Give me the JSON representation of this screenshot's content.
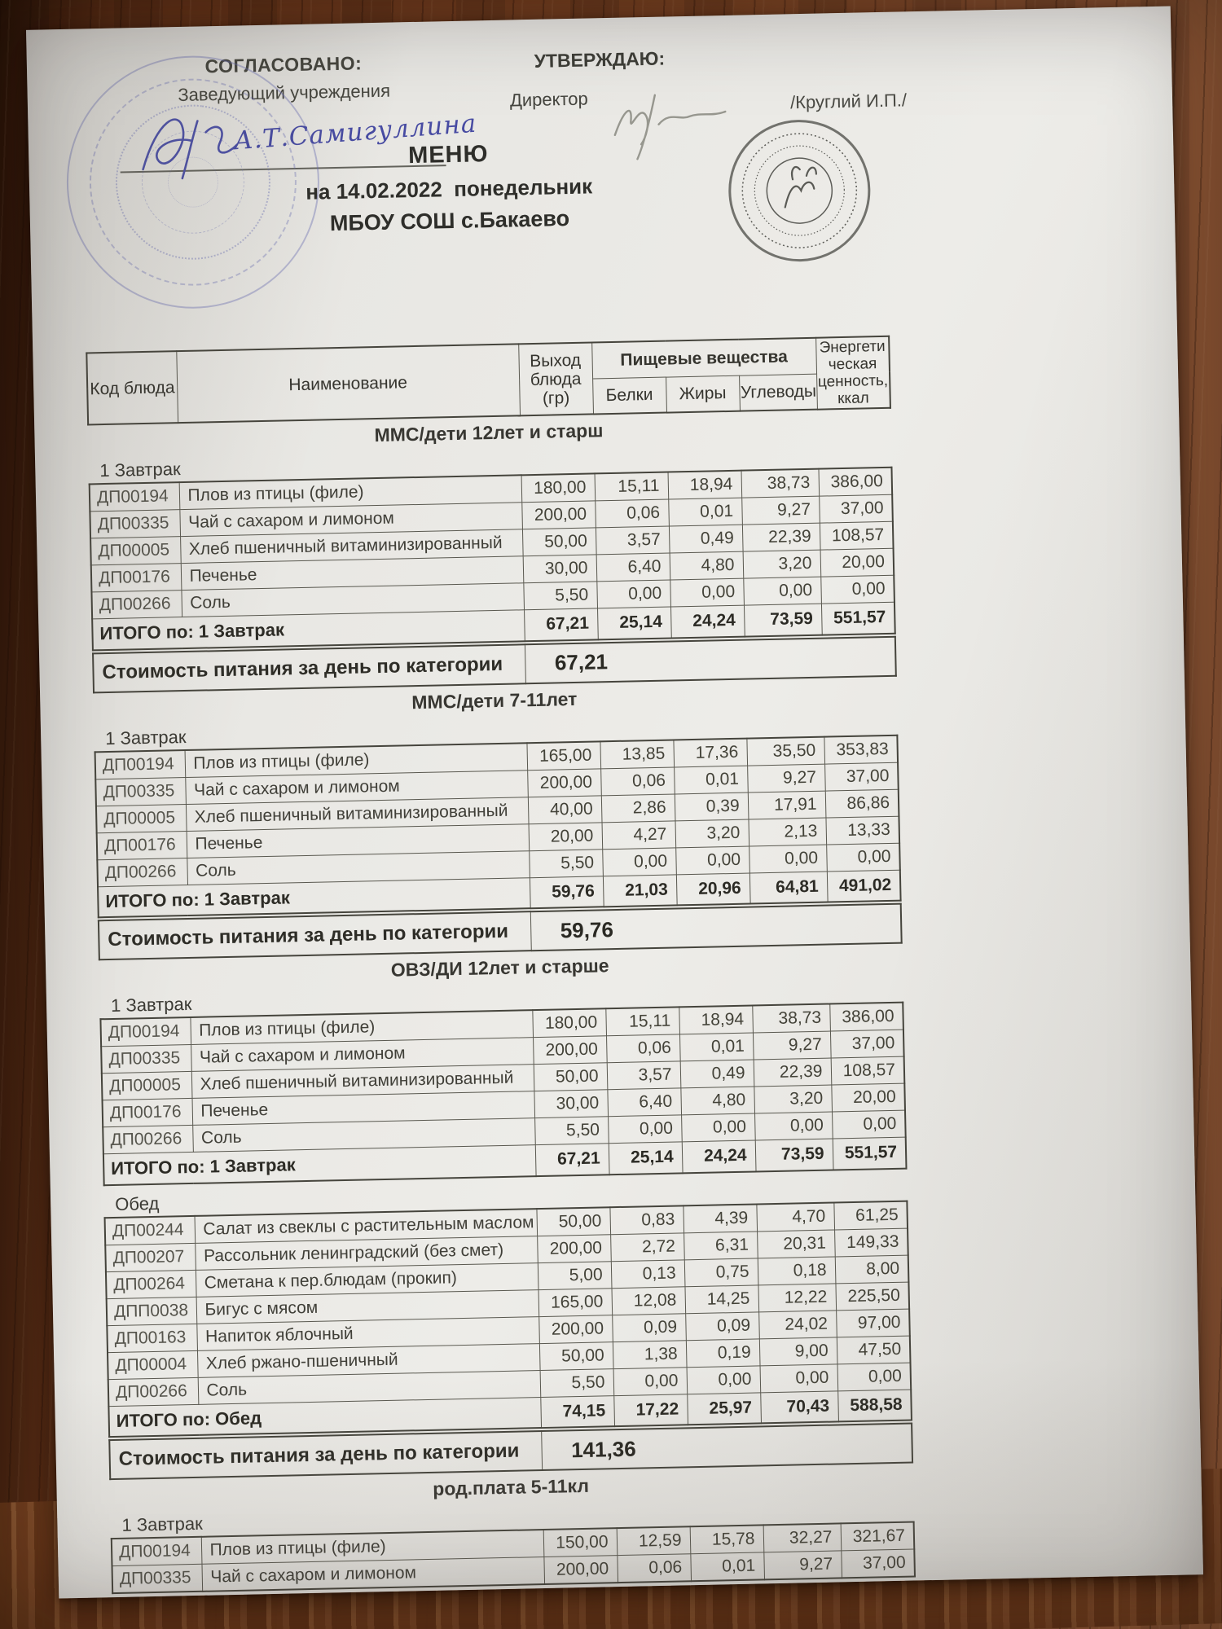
{
  "signoff": {
    "agreed_title": "СОГЛАСОВАНО:",
    "agreed_role": "Заведующий  учреждения",
    "agreed_signature": "А.Т.Самигуллина",
    "approve_title": "УТВЕРЖДАЮ:",
    "approve_role": "Директор",
    "approve_name": "/Круглий И.П./"
  },
  "title": {
    "menu": "МЕНЮ",
    "date_line": "на 14.02.2022  понедельник",
    "school": "МБОУ СОШ с.Бакаево"
  },
  "columns": {
    "code": "Код блюда",
    "name": "Наименование",
    "output": "Выход блюда (гр)",
    "nutrients": "Пищевые вещества",
    "protein": "Белки",
    "fat": "Жиры",
    "carbs": "Углеводы",
    "energy": "Энергети ческая ценность, ккал"
  },
  "stamps": {
    "left_stamp": "round-blue-ink-stamp",
    "right_stamp": "round-dark-seal"
  },
  "sections": [
    {
      "category": "ММС/дети 12лет и старш",
      "blocks": [
        {
          "meal": "1 Завтрак",
          "rows": [
            [
              "ДП00194",
              "Плов из птицы (филе)",
              "180,00",
              "15,11",
              "18,94",
              "38,73",
              "386,00"
            ],
            [
              "ДП00335",
              "Чай с сахаром и лимоном",
              "200,00",
              "0,06",
              "0,01",
              "9,27",
              "37,00"
            ],
            [
              "ДП00005",
              "Хлеб пшеничный витаминизированный",
              "50,00",
              "3,57",
              "0,49",
              "22,39",
              "108,57"
            ],
            [
              "ДП00176",
              "Печенье",
              "30,00",
              "6,40",
              "4,80",
              "3,20",
              "20,00"
            ],
            [
              "ДП00266",
              "Соль",
              "5,50",
              "0,00",
              "0,00",
              "0,00",
              "0,00"
            ]
          ],
          "total_label": "ИТОГО по: 1 Завтрак",
          "total": [
            "67,21",
            "25,14",
            "24,24",
            "73,59",
            "551,57"
          ]
        }
      ],
      "cost_label": "Стоимость питания за день по категории",
      "cost_value": "67,21"
    },
    {
      "category": "ММС/дети 7-11лет",
      "blocks": [
        {
          "meal": "1 Завтрак",
          "rows": [
            [
              "ДП00194",
              "Плов из птицы (филе)",
              "165,00",
              "13,85",
              "17,36",
              "35,50",
              "353,83"
            ],
            [
              "ДП00335",
              "Чай с сахаром и лимоном",
              "200,00",
              "0,06",
              "0,01",
              "9,27",
              "37,00"
            ],
            [
              "ДП00005",
              "Хлеб пшеничный витаминизированный",
              "40,00",
              "2,86",
              "0,39",
              "17,91",
              "86,86"
            ],
            [
              "ДП00176",
              "Печенье",
              "20,00",
              "4,27",
              "3,20",
              "2,13",
              "13,33"
            ],
            [
              "ДП00266",
              "Соль",
              "5,50",
              "0,00",
              "0,00",
              "0,00",
              "0,00"
            ]
          ],
          "total_label": "ИТОГО по: 1 Завтрак",
          "total": [
            "59,76",
            "21,03",
            "20,96",
            "64,81",
            "491,02"
          ]
        }
      ],
      "cost_label": "Стоимость питания за день по категории",
      "cost_value": "59,76"
    },
    {
      "category": "ОВЗ/ДИ 12лет и старше",
      "blocks": [
        {
          "meal": "1 Завтрак",
          "rows": [
            [
              "ДП00194",
              "Плов из птицы (филе)",
              "180,00",
              "15,11",
              "18,94",
              "38,73",
              "386,00"
            ],
            [
              "ДП00335",
              "Чай с сахаром и лимоном",
              "200,00",
              "0,06",
              "0,01",
              "9,27",
              "37,00"
            ],
            [
              "ДП00005",
              "Хлеб пшеничный витаминизированный",
              "50,00",
              "3,57",
              "0,49",
              "22,39",
              "108,57"
            ],
            [
              "ДП00176",
              "Печенье",
              "30,00",
              "6,40",
              "4,80",
              "3,20",
              "20,00"
            ],
            [
              "ДП00266",
              "Соль",
              "5,50",
              "0,00",
              "0,00",
              "0,00",
              "0,00"
            ]
          ],
          "total_label": "ИТОГО по: 1 Завтрак",
          "total": [
            "67,21",
            "25,14",
            "24,24",
            "73,59",
            "551,57"
          ]
        },
        {
          "meal": "Обед",
          "rows": [
            [
              "ДП00244",
              "Салат из свеклы с растительным маслом",
              "50,00",
              "0,83",
              "4,39",
              "4,70",
              "61,25"
            ],
            [
              "ДП00207",
              "Рассольник ленинградский (без смет)",
              "200,00",
              "2,72",
              "6,31",
              "20,31",
              "149,33"
            ],
            [
              "ДП00264",
              "Сметана к пер.блюдам (прокип)",
              "5,00",
              "0,13",
              "0,75",
              "0,18",
              "8,00"
            ],
            [
              "ДПП0038",
              "Бигус с мясом",
              "165,00",
              "12,08",
              "14,25",
              "12,22",
              "225,50"
            ],
            [
              "ДП00163",
              "Напиток яблочный",
              "200,00",
              "0,09",
              "0,09",
              "24,02",
              "97,00"
            ],
            [
              "ДП00004",
              "Хлеб ржано-пшеничный",
              "50,00",
              "1,38",
              "0,19",
              "9,00",
              "47,50"
            ],
            [
              "ДП00266",
              "Соль",
              "5,50",
              "0,00",
              "0,00",
              "0,00",
              "0,00"
            ]
          ],
          "total_label": "ИТОГО по: Обед",
          "total": [
            "74,15",
            "17,22",
            "25,97",
            "70,43",
            "588,58"
          ]
        }
      ],
      "cost_label": "Стоимость питания за день по категории",
      "cost_value": "141,36"
    },
    {
      "category": "род.плата 5-11кл",
      "blocks": [
        {
          "meal": "1 Завтрак",
          "rows": [
            [
              "ДП00194",
              "Плов из птицы (филе)",
              "150,00",
              "12,59",
              "15,78",
              "32,27",
              "321,67"
            ],
            [
              "ДП00335",
              "Чай с сахаром и лимоном",
              "200,00",
              "0,06",
              "0,01",
              "9,27",
              "37,00"
            ]
          ],
          "total_label": null,
          "total": null
        }
      ],
      "cost_label": null,
      "cost_value": null
    }
  ]
}
